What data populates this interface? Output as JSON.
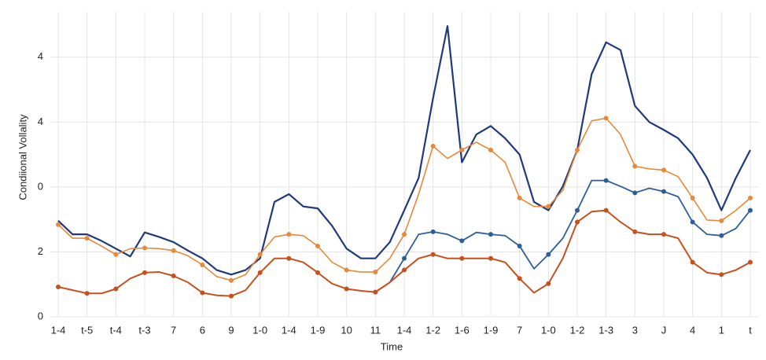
{
  "chart_data": {
    "type": "line",
    "x_label": "Time",
    "y_label": "Condiional Vollality",
    "x": [
      0,
      0.5,
      1,
      1.5,
      2,
      2.5,
      3,
      3.5,
      4,
      4.5,
      5,
      5.5,
      6,
      6.5,
      7,
      7.5,
      8,
      8.5,
      9,
      9.5,
      10,
      10.5,
      11,
      11.5,
      12,
      12.5,
      13,
      13.5,
      14,
      14.5,
      15,
      15.5,
      16,
      16.5,
      17,
      17.5,
      18,
      18.5,
      19,
      19.5,
      20,
      20.5,
      21,
      21.5,
      22,
      22.5,
      23,
      23.5,
      24
    ],
    "xlim": [
      -0.3,
      24.3
    ],
    "xticks": [
      {
        "value": 0,
        "label": "1-4"
      },
      {
        "value": 1,
        "label": "t-5"
      },
      {
        "value": 2,
        "label": "t-4"
      },
      {
        "value": 3,
        "label": "t-3"
      },
      {
        "value": 4,
        "label": "7"
      },
      {
        "value": 5,
        "label": "6"
      },
      {
        "value": 6,
        "label": "9"
      },
      {
        "value": 7,
        "label": "1-0"
      },
      {
        "value": 8,
        "label": "1-4"
      },
      {
        "value": 9,
        "label": "1-9"
      },
      {
        "value": 10,
        "label": "10"
      },
      {
        "value": 11,
        "label": "11"
      },
      {
        "value": 12,
        "label": "1-4"
      },
      {
        "value": 13,
        "label": "1-2"
      },
      {
        "value": 14,
        "label": "1-6"
      },
      {
        "value": 15,
        "label": "1-9"
      },
      {
        "value": 16,
        "label": "7"
      },
      {
        "value": 17,
        "label": "1-0"
      },
      {
        "value": 18,
        "label": "1-2"
      },
      {
        "value": 19,
        "label": "1-3"
      },
      {
        "value": 20,
        "label": "3"
      },
      {
        "value": 21,
        "label": "J"
      },
      {
        "value": 22,
        "label": "4"
      },
      {
        "value": 23,
        "label": "1"
      },
      {
        "value": 24,
        "label": "t"
      }
    ],
    "ylim": [
      0,
      4.7
    ],
    "yticks": [
      0,
      {
        "value": 1,
        "label": "2"
      },
      {
        "value": 2,
        "label": "0"
      },
      {
        "value": 3,
        "label": "4"
      },
      4
    ],
    "grid": true,
    "series": [
      {
        "color": "#1f3a7a",
        "width": 2.2,
        "marker": false,
        "values": [
          1.48,
          1.27,
          1.27,
          1.17,
          1.05,
          0.93,
          1.3,
          1.23,
          1.15,
          1.02,
          0.9,
          0.72,
          0.65,
          0.72,
          0.9,
          1.77,
          1.89,
          1.7,
          1.67,
          1.4,
          1.05,
          0.9,
          0.9,
          1.15,
          1.64,
          2.14,
          3.37,
          4.48,
          2.38,
          2.81,
          2.94,
          2.75,
          2.5,
          1.77,
          1.64,
          2.01,
          2.57,
          3.74,
          4.23,
          4.11,
          3.25,
          3.0,
          2.88,
          2.75,
          2.5,
          2.14,
          1.64,
          2.14,
          2.57
        ]
      },
      {
        "color": "#e8883a",
        "width": 1.6,
        "marker": true,
        "values": [
          1.42,
          1.21,
          1.21,
          1.09,
          0.96,
          1.05,
          1.06,
          1.05,
          1.02,
          0.94,
          0.8,
          0.62,
          0.56,
          0.65,
          0.96,
          1.23,
          1.27,
          1.25,
          1.09,
          0.84,
          0.72,
          0.69,
          0.69,
          0.9,
          1.27,
          1.89,
          2.63,
          2.44,
          2.57,
          2.69,
          2.57,
          2.38,
          1.83,
          1.7,
          1.7,
          1.95,
          2.57,
          3.02,
          3.06,
          2.81,
          2.32,
          2.28,
          2.26,
          2.16,
          1.83,
          1.49,
          1.48,
          1.64,
          1.83
        ]
      },
      {
        "color": "#2e5e9a",
        "width": 1.8,
        "marker": true,
        "values": [
          null,
          null,
          null,
          null,
          null,
          null,
          null,
          null,
          null,
          null,
          null,
          null,
          null,
          null,
          null,
          null,
          null,
          null,
          null,
          null,
          null,
          null,
          0.38,
          0.53,
          0.9,
          1.27,
          1.31,
          1.27,
          1.17,
          1.3,
          1.27,
          1.25,
          1.09,
          0.74,
          0.96,
          1.21,
          1.64,
          2.1,
          2.1,
          2.01,
          1.91,
          1.98,
          1.93,
          1.85,
          1.46,
          1.27,
          1.25,
          1.36,
          1.64
        ]
      },
      {
        "color": "#c8501e",
        "width": 2,
        "marker": true,
        "values": [
          0.46,
          0.41,
          0.36,
          0.36,
          0.43,
          0.59,
          0.68,
          0.69,
          0.63,
          0.53,
          0.37,
          0.33,
          0.32,
          0.41,
          0.68,
          0.9,
          0.9,
          0.84,
          0.68,
          0.51,
          0.43,
          0.4,
          0.38,
          0.53,
          0.72,
          0.9,
          0.96,
          0.9,
          0.9,
          0.9,
          0.9,
          0.84,
          0.59,
          0.37,
          0.51,
          0.9,
          1.46,
          1.62,
          1.64,
          1.46,
          1.31,
          1.27,
          1.27,
          1.21,
          0.84,
          0.68,
          0.65,
          0.72,
          0.84
        ]
      }
    ]
  }
}
